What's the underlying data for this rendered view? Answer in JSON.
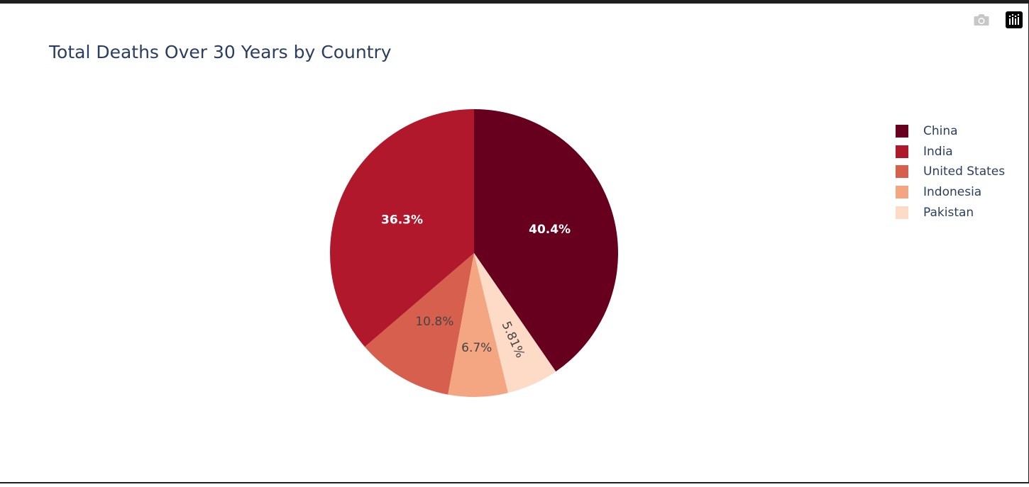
{
  "modebar": {
    "icons": [
      "camera-icon",
      "plotly-logo-icon"
    ]
  },
  "chart_data": {
    "type": "pie",
    "title": "Total Deaths Over 30 Years by Country",
    "slices": [
      {
        "label": "China",
        "percent": 40.4,
        "text": "40.4%",
        "color": "#67001f",
        "text_color": "#ffffff"
      },
      {
        "label": "Pakistan",
        "percent": 5.81,
        "text": "5.81%",
        "color": "#fddbc7",
        "text_color": "#444444"
      },
      {
        "label": "Indonesia",
        "percent": 6.7,
        "text": "6.7%",
        "color": "#f4a582",
        "text_color": "#444444"
      },
      {
        "label": "United States",
        "percent": 10.8,
        "text": "10.8%",
        "color": "#d6604d",
        "text_color": "#444444"
      },
      {
        "label": "India",
        "percent": 36.3,
        "text": "36.3%",
        "color": "#b2182b",
        "text_color": "#ffffff"
      }
    ],
    "legend": [
      {
        "label": "China",
        "color": "#67001f"
      },
      {
        "label": "India",
        "color": "#b2182b"
      },
      {
        "label": "United States",
        "color": "#d6604d"
      },
      {
        "label": "Indonesia",
        "color": "#f4a582"
      },
      {
        "label": "Pakistan",
        "color": "#fddbc7"
      }
    ],
    "legend_position": "right",
    "direction": "clockwise",
    "start": "top"
  }
}
